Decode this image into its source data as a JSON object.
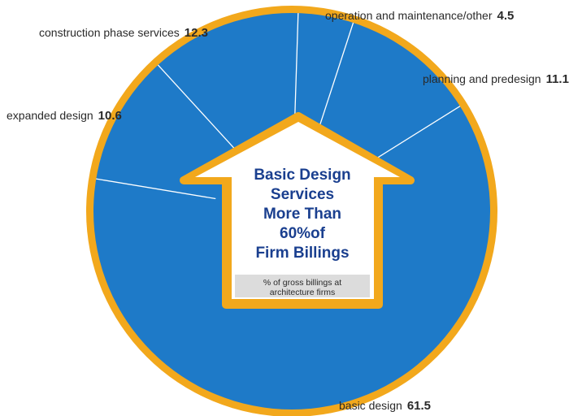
{
  "chart_data": {
    "type": "pie",
    "title_lines": [
      "Basic Design",
      "Services",
      "More Than",
      "60%of",
      "Firm Billings"
    ],
    "caption_lines": [
      "% of gross billings at",
      "architecture firms"
    ],
    "slices": [
      {
        "label": "basic design",
        "value": 61.5
      },
      {
        "label": "expanded design",
        "value": 10.6
      },
      {
        "label": "construction phase services",
        "value": 12.3
      },
      {
        "label": "operation and maintenance/other",
        "value": 4.5
      },
      {
        "label": "planning and predesign",
        "value": 11.1
      }
    ],
    "colors": {
      "fill": "#1e7ac8",
      "ring": "#f2a81c",
      "divider": "#ffffff",
      "arrow_body": "#ffffff",
      "arrow_caption_bg": "#dcdcdc",
      "title": "#1a3f8f"
    }
  }
}
